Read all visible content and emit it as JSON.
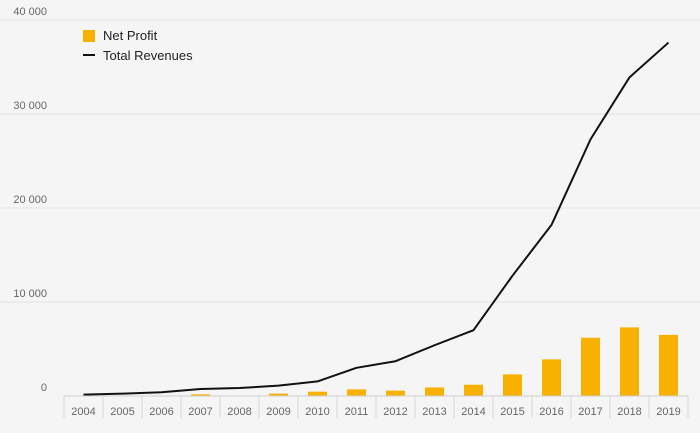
{
  "chart_data": {
    "type": "bar",
    "title": "",
    "xlabel": "",
    "ylabel": "",
    "categories": [
      "2004",
      "2005",
      "2006",
      "2007",
      "2008",
      "2009",
      "2010",
      "2011",
      "2012",
      "2013",
      "2014",
      "2015",
      "2016",
      "2017",
      "2018",
      "2019"
    ],
    "ylim": [
      0,
      40000
    ],
    "yticks": [
      0,
      10000,
      20000,
      30000,
      40000
    ],
    "ytick_labels": [
      "0",
      "10 000",
      "20 000",
      "30 000",
      "40 000"
    ],
    "grid": true,
    "legend_position": "top-left",
    "series": [
      {
        "name": "Net Profit",
        "type": "bar",
        "color": "#f8b100",
        "values": [
          5,
          10,
          20,
          180,
          5,
          250,
          460,
          710,
          570,
          910,
          1200,
          2300,
          3900,
          6200,
          7300,
          6500
        ]
      },
      {
        "name": "Total Revenues",
        "type": "line",
        "color": "#111111",
        "values": [
          150,
          250,
          400,
          750,
          850,
          1100,
          1550,
          3000,
          3700,
          5400,
          7000,
          12800,
          18200,
          27300,
          33900,
          37600
        ]
      }
    ]
  }
}
